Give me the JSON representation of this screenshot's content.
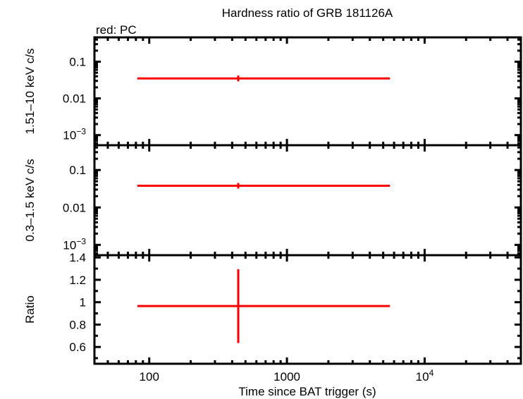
{
  "chart_data": [
    {
      "type": "scatter",
      "panel": "top",
      "title": "Hardness ratio of GRB 181126A",
      "annotation": "red: PC",
      "ylabel": "1.51–10 keV c/s",
      "yscale": "log",
      "ylim": [
        0.00053,
        0.46
      ],
      "yticks": [
        {
          "v": 0.1,
          "label": "0.1"
        },
        {
          "v": 0.01,
          "label": "0.01"
        },
        {
          "v": 0.001,
          "label": "10",
          "sup": "−3"
        }
      ],
      "series": [
        {
          "color": "#ff0000",
          "points": [
            {
              "x": 443,
              "xlo": 82,
              "xhi": 5600,
              "y": 0.035,
              "ylo": 0.029,
              "yhi": 0.042
            }
          ]
        }
      ]
    },
    {
      "type": "scatter",
      "panel": "middle",
      "ylabel": "0.3–1.5 keV c/s",
      "yscale": "log",
      "ylim": [
        0.00053,
        0.46
      ],
      "yticks": [
        {
          "v": 0.1,
          "label": "0.1"
        },
        {
          "v": 0.01,
          "label": "0.01"
        },
        {
          "v": 0.001,
          "label": "10",
          "sup": "−3"
        }
      ],
      "series": [
        {
          "color": "#ff0000",
          "points": [
            {
              "x": 443,
              "xlo": 82,
              "xhi": 5600,
              "y": 0.038,
              "ylo": 0.032,
              "yhi": 0.045
            }
          ]
        }
      ]
    },
    {
      "type": "scatter",
      "panel": "bottom",
      "ylabel": "Ratio",
      "xlabel": "Time since BAT trigger (s)",
      "yscale": "linear",
      "ylim": [
        0.45,
        1.42
      ],
      "yticks": [
        {
          "v": 1.4,
          "label": "1.4"
        },
        {
          "v": 1.2,
          "label": "1.2"
        },
        {
          "v": 1.0,
          "label": "1"
        },
        {
          "v": 0.8,
          "label": "0.8"
        },
        {
          "v": 0.6,
          "label": "0.6"
        }
      ],
      "series": [
        {
          "color": "#ff0000",
          "points": [
            {
              "x": 443,
              "xlo": 82,
              "xhi": 5600,
              "y": 0.966,
              "ylo": 0.635,
              "yhi": 1.295
            }
          ]
        }
      ]
    }
  ],
  "xaxis": {
    "scale": "log",
    "xlim": [
      40,
      50000
    ],
    "ticks": [
      {
        "v": 100,
        "label": "100"
      },
      {
        "v": 1000,
        "label": "1000"
      },
      {
        "v": 10000,
        "label": "10",
        "sup": "4"
      }
    ]
  }
}
